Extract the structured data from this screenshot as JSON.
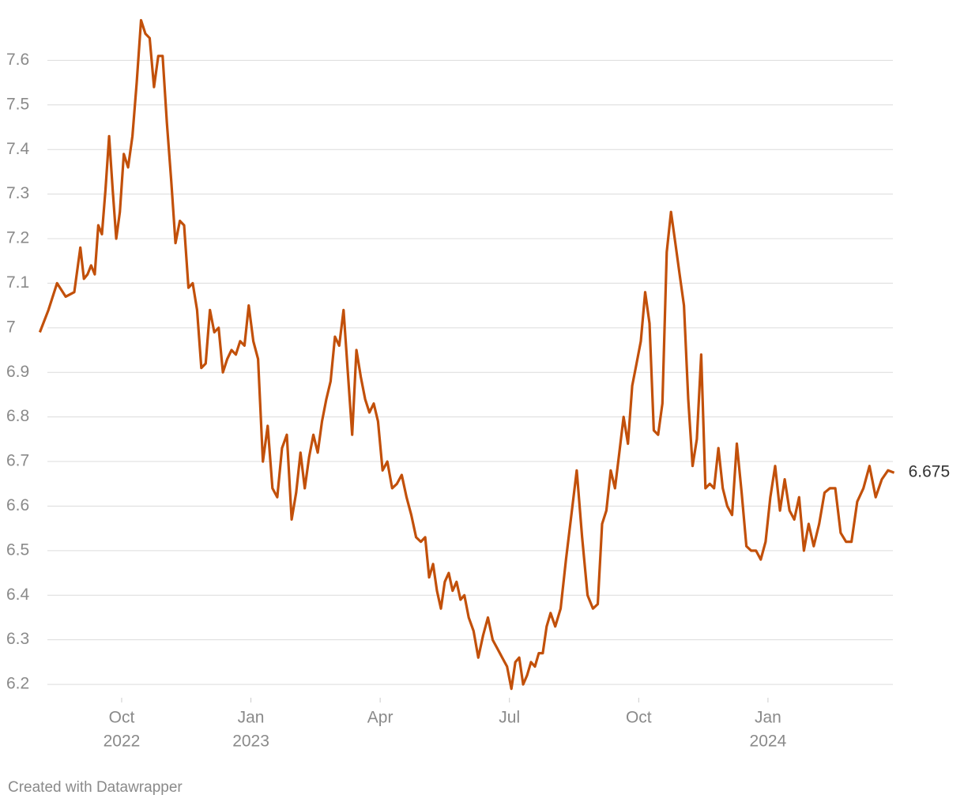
{
  "chart_data": {
    "type": "line",
    "color": "#c2500a",
    "x": [
      "2022-08",
      "2022-08",
      "2022-08",
      "2022-08",
      "2022-08",
      "2022-09",
      "2022-09",
      "2022-09",
      "2022-09",
      "2022-09",
      "2022-09",
      "2022-09",
      "2022-09",
      "2022-09",
      "2022-09",
      "2022-09",
      "2022-09",
      "2022-10",
      "2022-10",
      "2022-10",
      "2022-10",
      "2022-10",
      "2022-10",
      "2022-10",
      "2022-10",
      "2022-10",
      "2022-10",
      "2022-11",
      "2022-11",
      "2022-11",
      "2022-11",
      "2022-11",
      "2022-11",
      "2022-11",
      "2022-11",
      "2022-11",
      "2022-11",
      "2022-12",
      "2022-12",
      "2022-12",
      "2022-12",
      "2022-12",
      "2022-12",
      "2022-12",
      "2022-12",
      "2022-12",
      "2022-12",
      "2023-01",
      "2023-01",
      "2023-01",
      "2023-01",
      "2023-01",
      "2023-01",
      "2023-01",
      "2023-01",
      "2023-01",
      "2023-02",
      "2023-02",
      "2023-02",
      "2023-02",
      "2023-02",
      "2023-02",
      "2023-02",
      "2023-02",
      "2023-02",
      "2023-02",
      "2023-03",
      "2023-03",
      "2023-03",
      "2023-03",
      "2023-03",
      "2023-03",
      "2023-03",
      "2023-03",
      "2023-03",
      "2023-03",
      "2023-04",
      "2023-04",
      "2023-04",
      "2023-04",
      "2023-04",
      "2023-04",
      "2023-04",
      "2023-04",
      "2023-04",
      "2023-05",
      "2023-05",
      "2023-05",
      "2023-05",
      "2023-05",
      "2023-05",
      "2023-05",
      "2023-05",
      "2023-05",
      "2023-05",
      "2023-05",
      "2023-06",
      "2023-06",
      "2023-06",
      "2023-06",
      "2023-06",
      "2023-06",
      "2023-06",
      "2023-06",
      "2023-06",
      "2023-07",
      "2023-07",
      "2023-07",
      "2023-07",
      "2023-07",
      "2023-07",
      "2023-07",
      "2023-07",
      "2023-07",
      "2023-07",
      "2023-07",
      "2023-08",
      "2023-08",
      "2023-08",
      "2023-08",
      "2023-08",
      "2023-08",
      "2023-08",
      "2023-08",
      "2023-09",
      "2023-09",
      "2023-09",
      "2023-09",
      "2023-09",
      "2023-09",
      "2023-09",
      "2023-09",
      "2023-09",
      "2023-09",
      "2023-10",
      "2023-10",
      "2023-10",
      "2023-10",
      "2023-10",
      "2023-10",
      "2023-10",
      "2023-10",
      "2023-10",
      "2023-10",
      "2023-11",
      "2023-11",
      "2023-11",
      "2023-11",
      "2023-11",
      "2023-11",
      "2023-11",
      "2023-11",
      "2023-11",
      "2023-11",
      "2023-12",
      "2023-12",
      "2023-12",
      "2023-12",
      "2023-12",
      "2023-12",
      "2023-12",
      "2023-12",
      "2023-12",
      "2024-01",
      "2024-01",
      "2024-01",
      "2024-01",
      "2024-01",
      "2024-01",
      "2024-01",
      "2024-01",
      "2024-01",
      "2024-02",
      "2024-02",
      "2024-02",
      "2024-02",
      "2024-02",
      "2024-02",
      "2024-02",
      "2024-02",
      "2024-03",
      "2024-03",
      "2024-03",
      "2024-03",
      "2024-03",
      "2024-03",
      "2024-03"
    ],
    "values": [
      6.99,
      7.04,
      7.1,
      7.07,
      7.08,
      7.18,
      7.11,
      7.12,
      7.14,
      7.12,
      7.23,
      7.21,
      7.31,
      7.43,
      7.31,
      7.2,
      7.26,
      7.39,
      7.36,
      7.43,
      7.55,
      7.69,
      7.66,
      7.65,
      7.54,
      7.61,
      7.61,
      7.46,
      7.33,
      7.19,
      7.24,
      7.23,
      7.09,
      7.1,
      7.04,
      6.91,
      6.92,
      7.04,
      6.99,
      7.0,
      6.9,
      6.93,
      6.95,
      6.94,
      6.97,
      6.96,
      7.05,
      6.97,
      6.93,
      6.7,
      6.78,
      6.64,
      6.62,
      6.73,
      6.76,
      6.57,
      6.63,
      6.72,
      6.64,
      6.71,
      6.76,
      6.72,
      6.79,
      6.84,
      6.88,
      6.98,
      6.96,
      7.04,
      6.9,
      6.76,
      6.95,
      6.89,
      6.84,
      6.81,
      6.83,
      6.79,
      6.68,
      6.7,
      6.64,
      6.65,
      6.67,
      6.62,
      6.58,
      6.53,
      6.52,
      6.53,
      6.44,
      6.47,
      6.41,
      6.37,
      6.43,
      6.45,
      6.41,
      6.43,
      6.39,
      6.4,
      6.35,
      6.32,
      6.26,
      6.31,
      6.35,
      6.3,
      6.28,
      6.26,
      6.24,
      6.19,
      6.25,
      6.26,
      6.2,
      6.22,
      6.25,
      6.24,
      6.27,
      6.27,
      6.33,
      6.36,
      6.33,
      6.37,
      6.48,
      6.58,
      6.68,
      6.53,
      6.4,
      6.37,
      6.38,
      6.56,
      6.59,
      6.68,
      6.64,
      6.72,
      6.8,
      6.74,
      6.87,
      6.92,
      6.97,
      7.08,
      7.01,
      6.77,
      6.76,
      6.83,
      7.17,
      7.26,
      7.19,
      7.12,
      7.05,
      6.84,
      6.69,
      6.75,
      6.94,
      6.64,
      6.65,
      6.64,
      6.73,
      6.64,
      6.6,
      6.58,
      6.74,
      6.63,
      6.51,
      6.5,
      6.5,
      6.48,
      6.52,
      6.62,
      6.69,
      6.59,
      6.66,
      6.59,
      6.57,
      6.62,
      6.5,
      6.56,
      6.51,
      6.56,
      6.63,
      6.64,
      6.64,
      6.54,
      6.52,
      6.52,
      6.61,
      6.64,
      6.69,
      6.62,
      6.66,
      6.68,
      6.675
    ],
    "last_value_label": "6.675",
    "xlim": [
      "2022-08",
      "2024-04"
    ],
    "xticks": [
      {
        "value": "2022-10",
        "label": "Oct",
        "year": "2022"
      },
      {
        "value": "2023-01",
        "label": "Jan",
        "year": "2023"
      },
      {
        "value": "2023-04",
        "label": "Apr"
      },
      {
        "value": "2023-07",
        "label": "Jul"
      },
      {
        "value": "2023-10",
        "label": "Oct"
      },
      {
        "value": "2024-01",
        "label": "Jan",
        "year": "2024"
      }
    ],
    "ylim": [
      6.17,
      7.7
    ],
    "yticks": [
      6.2,
      6.3,
      6.4,
      6.5,
      6.6,
      6.7,
      6.8,
      6.9,
      7.0,
      7.1,
      7.2,
      7.3,
      7.4,
      7.5,
      7.6
    ],
    "grid": true,
    "credit": "Created with Datawrapper"
  }
}
